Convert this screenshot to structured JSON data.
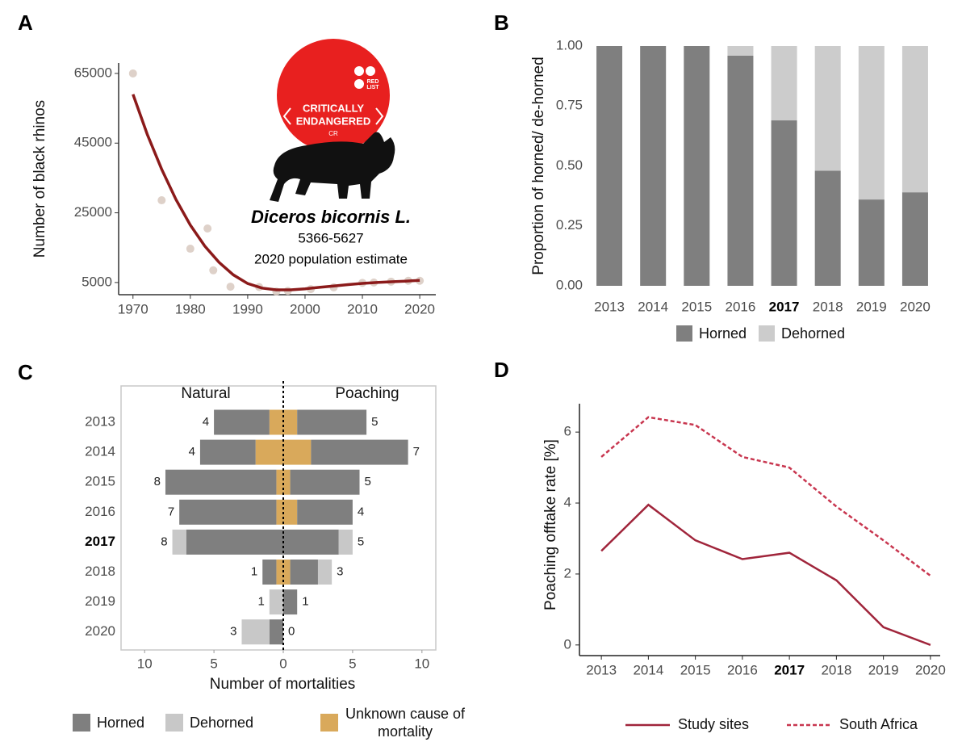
{
  "chart_data": [
    {
      "panel": "A",
      "type": "scatter",
      "ylabel": "Number of black rhinos",
      "xlim": [
        1967.5,
        2022.8
      ],
      "xticks": [
        1970,
        1980,
        1990,
        2000,
        2010,
        2020
      ],
      "ylim": [
        1500,
        68000
      ],
      "yticks": [
        5000,
        25000,
        45000,
        65000
      ],
      "points": {
        "color": "#d8c9c0",
        "x": [
          1970,
          1975,
          1980,
          1983,
          1984,
          1987,
          1992,
          1995,
          1997,
          2001,
          2005,
          2010,
          2012,
          2015,
          2018,
          2020
        ],
        "values": [
          65000,
          28600,
          14700,
          20500,
          8500,
          3800,
          3700,
          2400,
          2600,
          3100,
          3600,
          4900,
          5000,
          5250,
          5500,
          5500
        ]
      },
      "curve": {
        "color": "#8b1a1a",
        "x": [
          1970,
          1972.5,
          1975,
          1977.5,
          1980,
          1982.5,
          1985,
          1987.5,
          1990,
          1992.5,
          1995,
          1997.5,
          2000,
          2002.5,
          2005,
          2007.5,
          2010,
          2012.5,
          2015,
          2017.5,
          2020
        ],
        "values": [
          59000,
          47500,
          37500,
          28800,
          21500,
          15500,
          10800,
          7200,
          4700,
          3400,
          2900,
          2900,
          3200,
          3600,
          4000,
          4400,
          4750,
          5000,
          5200,
          5400,
          5600
        ]
      },
      "badge": {
        "color": "#e8201f",
        "lines": [
          "CRITICALLY",
          "ENDANGERED"
        ],
        "code": "CR",
        "list": [
          "RED",
          "LIST"
        ]
      },
      "annotations": [
        "Diceros bicornis L.",
        "5366-5627",
        "2020 population estimate"
      ]
    },
    {
      "panel": "B",
      "type": "stacked_bar",
      "ylabel": "Proportion of horned/ de-horned",
      "categories": [
        "2013",
        "2014",
        "2015",
        "2016",
        "2017",
        "2018",
        "2019",
        "2020"
      ],
      "bold_category": "2017",
      "ylim": [
        0,
        1
      ],
      "yticks": [
        {
          "value": 0,
          "label": "0.00"
        },
        {
          "value": 0.25,
          "label": "0.25"
        },
        {
          "value": 0.5,
          "label": "0.50"
        },
        {
          "value": 0.75,
          "label": "0.75"
        },
        {
          "value": 1,
          "label": "1.00"
        }
      ],
      "series": [
        {
          "name": "Horned",
          "color": "#7f7f7f",
          "values": [
            1,
            1,
            1,
            0.96,
            0.69,
            0.48,
            0.36,
            0.39
          ]
        },
        {
          "name": "Dehorned",
          "color": "#cccccc",
          "values": [
            0,
            0,
            0,
            0.04,
            0.31,
            0.52,
            0.64,
            0.61
          ]
        }
      ],
      "legend": "bottom"
    },
    {
      "panel": "C",
      "type": "diverging_bar",
      "xlabel": "Number of mortalities",
      "side_labels": [
        "Natural",
        "Poaching"
      ],
      "categories": [
        "2013",
        "2014",
        "2015",
        "2016",
        "2017",
        "2018",
        "2019",
        "2020"
      ],
      "bold_category": "2017",
      "xlim": [
        -11.7,
        11
      ],
      "xticks": [
        {
          "value": -10,
          "label": "10"
        },
        {
          "value": -5,
          "label": "5"
        },
        0,
        5,
        10
      ],
      "series": [
        {
          "name": "Horned",
          "color": "#7f7f7f",
          "natural": [
            4,
            4,
            8,
            7,
            7,
            1,
            0,
            1
          ],
          "poaching": [
            5,
            7,
            5,
            4,
            4,
            2,
            1,
            0
          ]
        },
        {
          "name": "Dehorned",
          "color": "#c8c8c8",
          "natural": [
            0,
            0,
            0,
            0,
            1,
            0,
            1,
            2
          ],
          "poaching": [
            0,
            0,
            0,
            0,
            1,
            1,
            0,
            0
          ]
        },
        {
          "name": "Unknown cause of mortality",
          "color": "#d9a95b",
          "natural": [
            1,
            2,
            0.5,
            0.5,
            0,
            0.5,
            0,
            0
          ],
          "poaching": [
            1,
            2,
            0.5,
            1,
            0,
            0.5,
            0,
            0
          ]
        }
      ],
      "natural_counts": [
        4,
        4,
        8,
        7,
        8,
        1,
        1,
        3
      ],
      "poaching_counts": [
        5,
        7,
        5,
        4,
        5,
        3,
        1,
        0
      ],
      "legend": "bottom"
    },
    {
      "panel": "D",
      "type": "line",
      "ylabel": "Poaching offtake rate [%]",
      "categories": [
        "2013",
        "2014",
        "2015",
        "2016",
        "2017",
        "2018",
        "2019",
        "2020"
      ],
      "bold_category": "2017",
      "ylim": [
        -0.3,
        6.8
      ],
      "yticks": [
        0,
        2,
        4,
        6
      ],
      "series": [
        {
          "name": "Study sites",
          "color": "#a0253b",
          "linestyle": "solid",
          "values": [
            2.65,
            3.95,
            2.95,
            2.42,
            2.6,
            1.82,
            0.5,
            0.0
          ]
        },
        {
          "name": "South Africa",
          "color": "#c8364f",
          "linestyle": "dashed",
          "values": [
            5.3,
            6.42,
            6.2,
            5.3,
            5.0,
            3.9,
            2.95,
            1.95
          ]
        }
      ],
      "legend": "bottom"
    }
  ]
}
